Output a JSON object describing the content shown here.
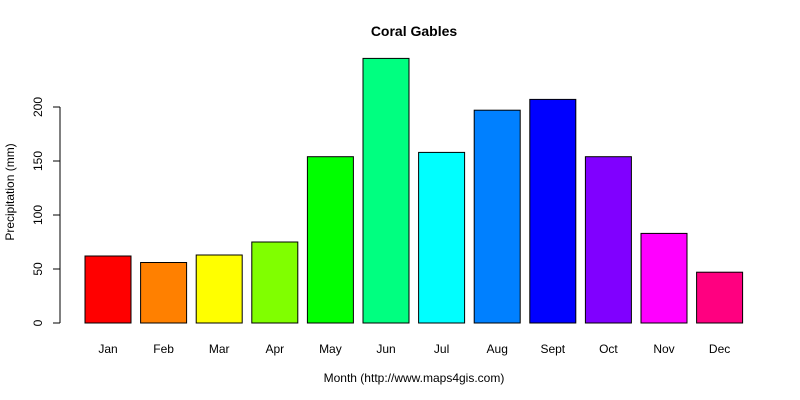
{
  "chart_data": {
    "type": "bar",
    "title": "Coral Gables",
    "xlabel": "Month (http://www.maps4gis.com)",
    "ylabel": "Precipitation (mm)",
    "categories": [
      "Jan",
      "Feb",
      "Mar",
      "Apr",
      "May",
      "Jun",
      "Jul",
      "Aug",
      "Sept",
      "Oct",
      "Nov",
      "Dec"
    ],
    "values": [
      62,
      56,
      63,
      75,
      154,
      245,
      158,
      197,
      207,
      154,
      83,
      47
    ],
    "colors": [
      "#FF0000",
      "#FF8000",
      "#FFFF00",
      "#80FF00",
      "#00FF00",
      "#00FF80",
      "#00FFFF",
      "#0080FF",
      "#0000FF",
      "#8000FF",
      "#FF00FF",
      "#FF0080"
    ],
    "yticks": [
      0,
      50,
      100,
      150,
      200
    ],
    "ylim": [
      0,
      245
    ],
    "grid": false,
    "legend": "none"
  }
}
